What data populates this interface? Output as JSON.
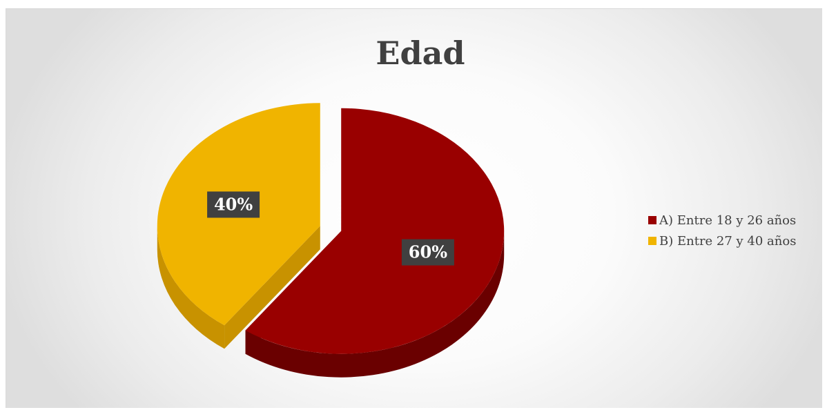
{
  "chart_data": {
    "type": "pie",
    "title": "Edad",
    "categories": [
      "A) Entre 18 y 26 años",
      "B) Entre 27 y 40 años"
    ],
    "values": [
      60,
      40
    ],
    "labels": [
      "60%",
      "40%"
    ],
    "colors": [
      "#990000",
      "#f0b400"
    ],
    "side_colors": [
      "#6a0000",
      "#c89200"
    ],
    "legend_position": "right",
    "exploded": true,
    "style": "3d"
  }
}
